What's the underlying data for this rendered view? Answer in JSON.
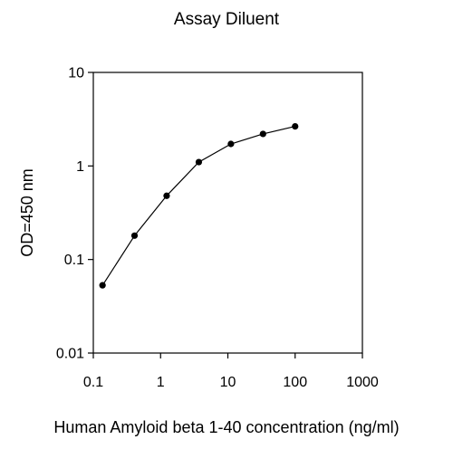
{
  "chart_data": {
    "type": "line",
    "title": "Assay Diluent",
    "xlabel": "Human Amyloid beta 1-40 concentration (ng/ml)",
    "ylabel": "OD=450 nm",
    "xscale": "log",
    "yscale": "log",
    "xlim": [
      0.1,
      1000
    ],
    "ylim": [
      0.01,
      10
    ],
    "x_ticks": [
      "0.1",
      "1",
      "10",
      "100",
      "1000"
    ],
    "y_ticks": [
      "0.01",
      "0.1",
      "1",
      "10"
    ],
    "grid": false,
    "legend": "none",
    "series": [
      {
        "x": [
          0.137,
          0.41,
          1.23,
          3.7,
          11.1,
          33.3,
          100
        ],
        "y": [
          0.053,
          0.18,
          0.48,
          1.1,
          1.72,
          2.2,
          2.65
        ],
        "marker": "circle",
        "color": "#000000"
      }
    ]
  }
}
